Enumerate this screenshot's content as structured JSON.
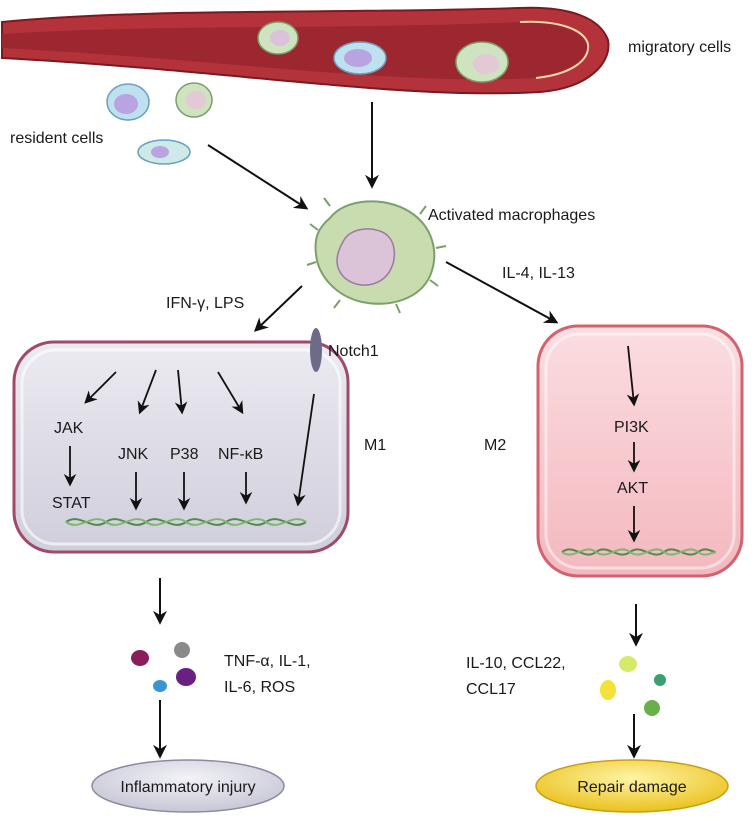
{
  "labels": {
    "migratory_cells": "migratory cells",
    "resident_cells": "resident cells",
    "activated_macrophages": "Activated macrophages",
    "ifn_lps": "IFN-γ, LPS",
    "il4_il13": "IL-4, IL-13",
    "notch1": "Notch1",
    "m1": "M1",
    "m2": "M2",
    "jak": "JAK",
    "stat": "STAT",
    "jnk": "JNK",
    "p38": "P38",
    "nfkb": "NF-κB",
    "pi3k": "PI3K",
    "akt": "AKT",
    "m1_products_line1": "TNF-α, IL-1,",
    "m1_products_line2": "IL-6, ROS",
    "m2_products_line1": "IL-10, CCL22,",
    "m2_products_line2": "CCL17",
    "inflammatory_injury": "Inflammatory injury",
    "repair_damage": "Repair damage"
  },
  "colors": {
    "vessel_outer": "#b4333a",
    "vessel_inner": "#8c1f26",
    "m1_fill": "#dcdbe6",
    "m1_border": "#a04a6a",
    "m2_fill": "#f6c8cc",
    "m2_border": "#d4616e",
    "dna": "#4f8a4a",
    "injury_fill": "#d6d6e2",
    "repair_fill": "#f2d23a",
    "notch": "#6e6a8a",
    "macrophage": "#c8dcb0"
  }
}
